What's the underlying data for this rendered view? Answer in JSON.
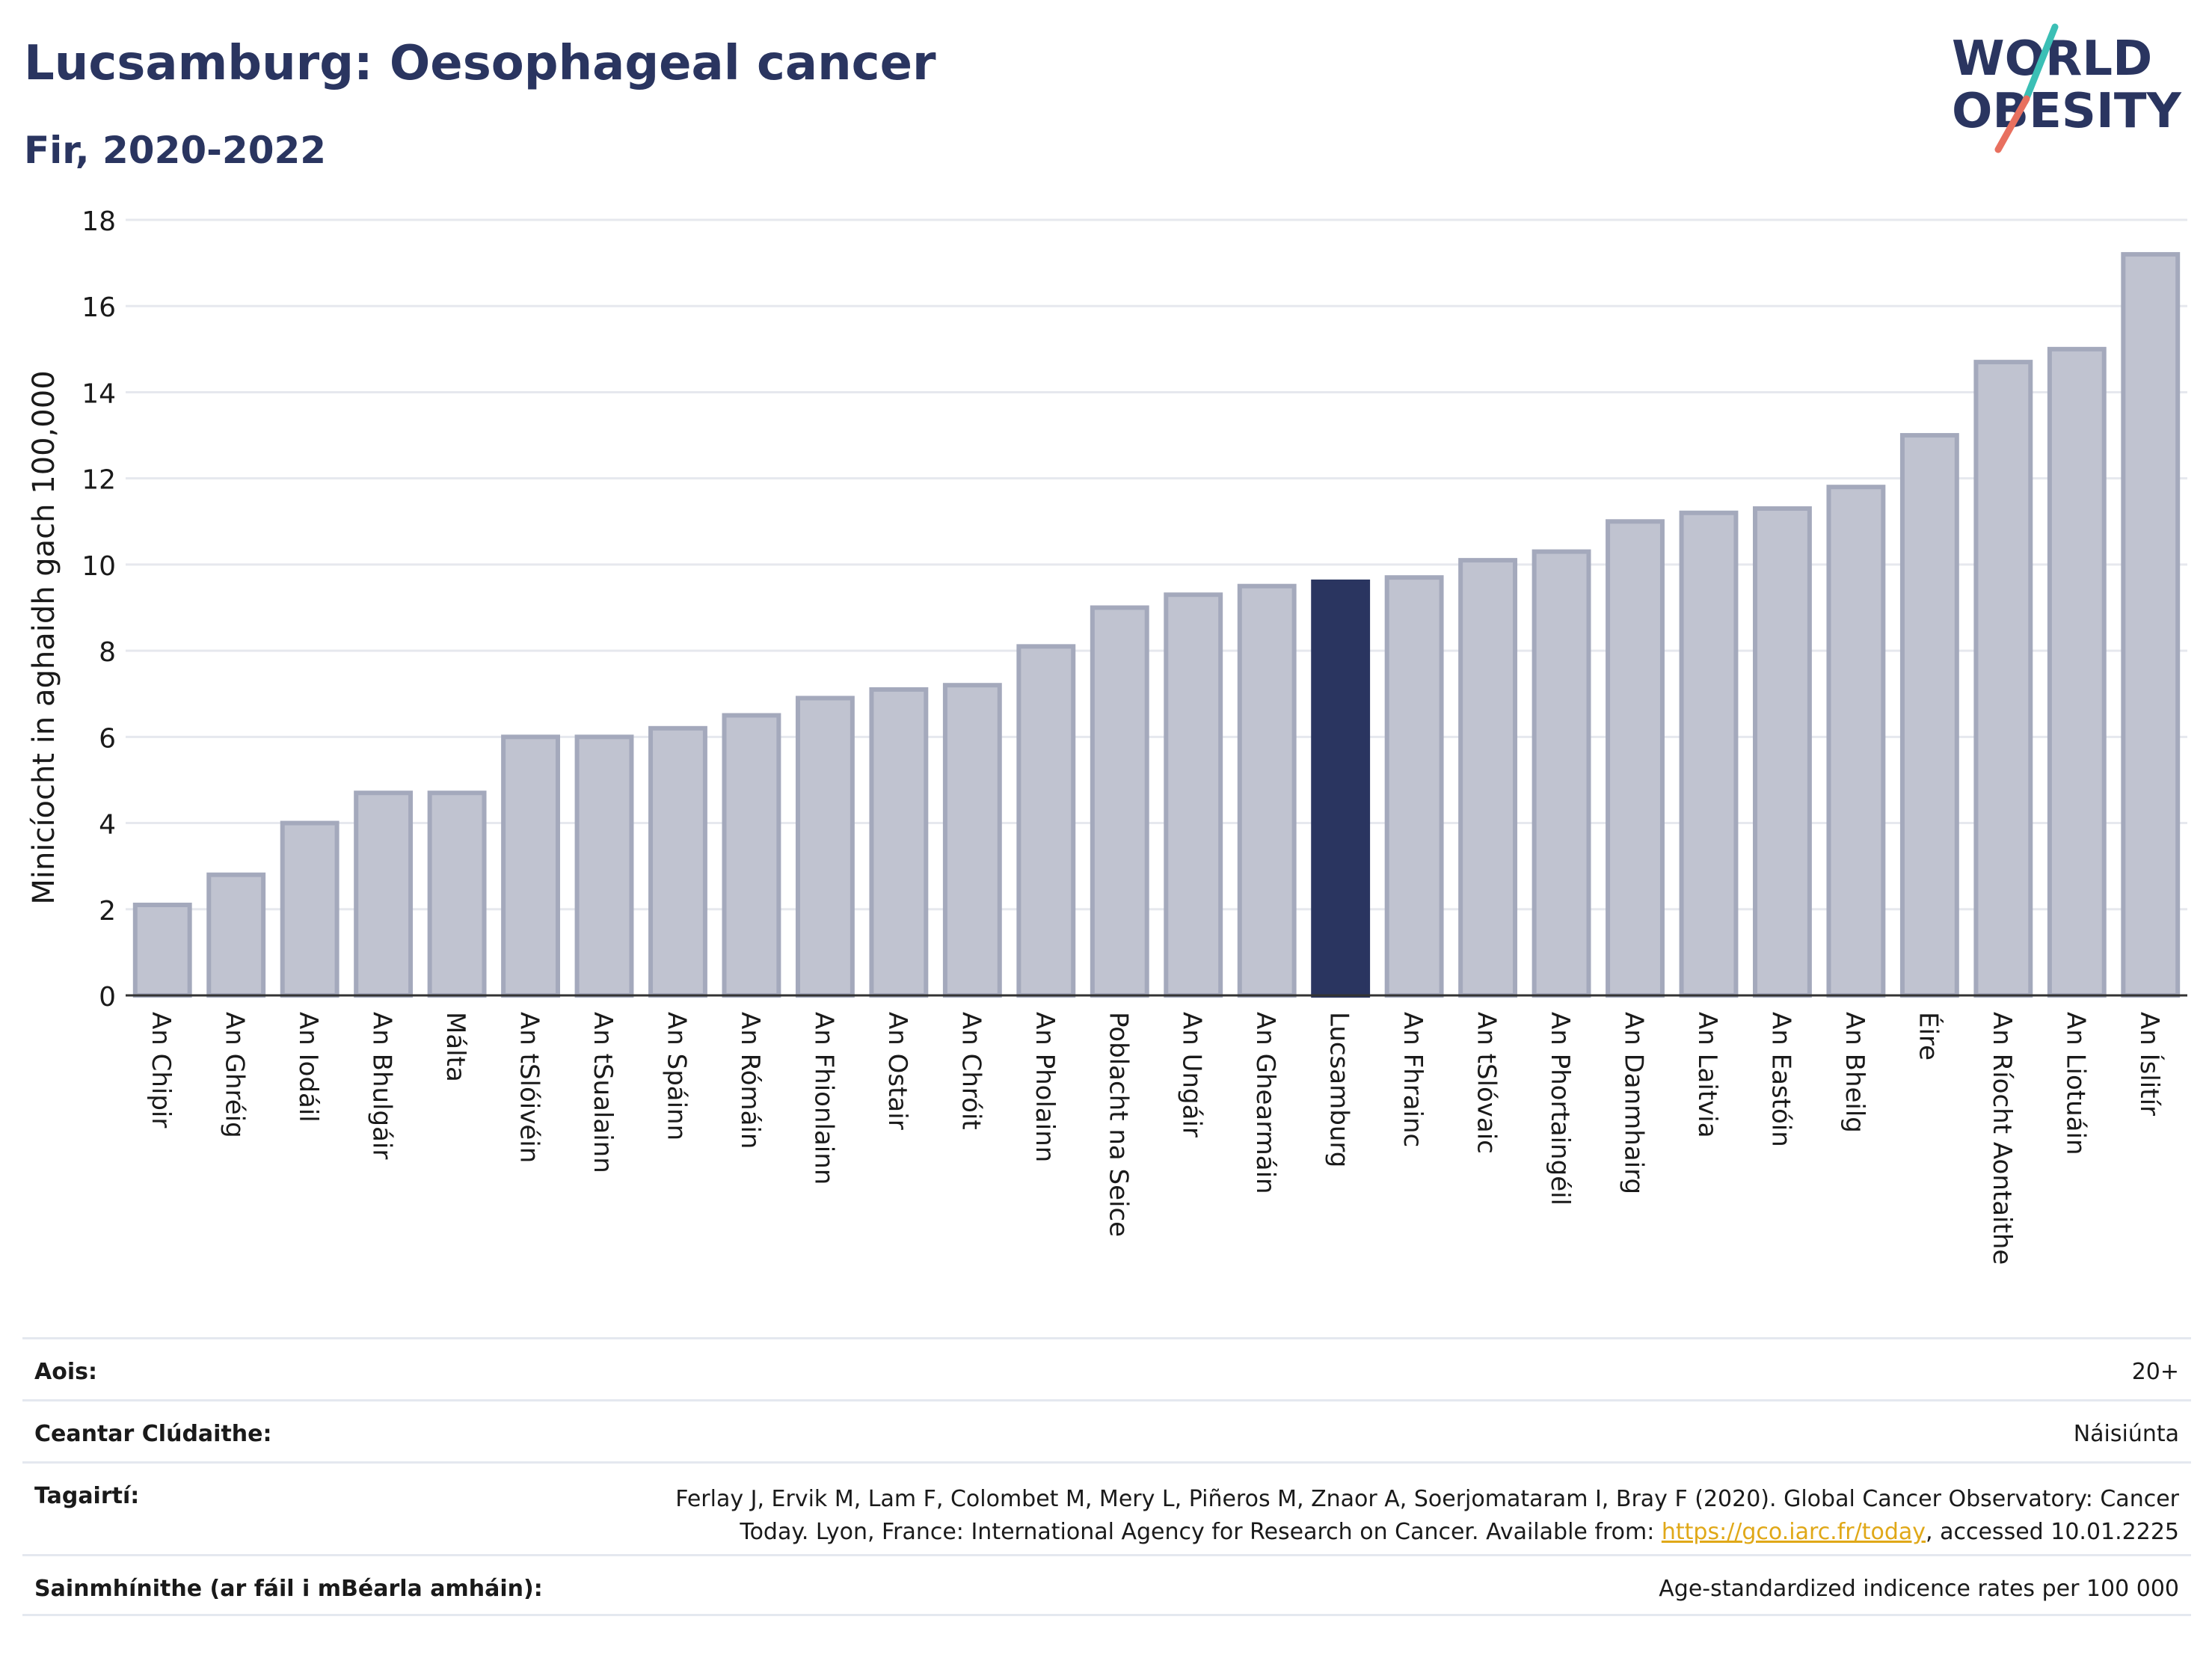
{
  "title": "Lucsamburg: Oesophageal cancer",
  "subtitle": "Fir, 2020-2022",
  "logo": {
    "line1": "WORLD",
    "line2": "OBESITY",
    "colors": {
      "text": "#2a3560",
      "slash_top": "#3bbfb5",
      "slash_bottom": "#e8705f"
    }
  },
  "colors": {
    "bar": "#c0c3d0",
    "bar_border": "#a4a9bc",
    "highlight": "#2a3560",
    "grid": "#e6e8ee",
    "axis": "#333333"
  },
  "chart_data": {
    "type": "bar",
    "ylabel": "Minicíocht in aghaidh gach 100,000",
    "xlabel": "",
    "ylim": [
      0,
      18
    ],
    "yticks": [
      0,
      2,
      4,
      6,
      8,
      10,
      12,
      14,
      16,
      18
    ],
    "grid": true,
    "highlight": "Lucsamburg",
    "categories": [
      "An Chipir",
      "An Ghréig",
      "An Iodáil",
      "An Bhulgáir",
      "Málta",
      "An tSlóivéin",
      "An tSualainn",
      "An Spáinn",
      "An Rómáin",
      "An Fhionlainn",
      "An Ostair",
      "An Chróit",
      "An Pholainn",
      "Poblacht na Seice",
      "An Ungáir",
      "An Ghearmáin",
      "Lucsamburg",
      "An Fhrainc",
      "An tSlóvaic",
      "An Phortaingéil",
      "An Danmhairg",
      "An Laitvia",
      "An Eastóin",
      "An Bheilg",
      "Éire",
      "An Ríocht Aontaithe",
      "An Liotuáin",
      "An Íslitír"
    ],
    "values": [
      2.1,
      2.8,
      4.0,
      4.7,
      4.7,
      6.0,
      6.0,
      6.2,
      6.5,
      6.9,
      7.1,
      7.2,
      8.1,
      9.0,
      9.3,
      9.5,
      9.6,
      9.7,
      10.1,
      10.3,
      11.0,
      11.2,
      11.3,
      11.8,
      13.0,
      14.7,
      15.0,
      17.2
    ]
  },
  "info": {
    "age_label": "Aois:",
    "age_value": "20+",
    "area_label": "Ceantar Clúdaithe:",
    "area_value": "Náisiúnta",
    "ref_label": "Tagairtí:",
    "ref_line1": "Ferlay J, Ervik M, Lam F, Colombet M, Mery L, Piñeros M, Znaor A, Soerjomataram I, Bray F (2020). Global Cancer Observatory: Cancer",
    "ref_line2_pre": "Today. Lyon, France: International Agency for Research on Cancer. Available from: ",
    "ref_link": "https://gco.iarc.fr/today",
    "ref_line2_post": ", accessed 10.01.2225",
    "def_label": "Sainmhínithe (ar fáil i mBéarla amháin):",
    "def_value": "Age-standardized indicence rates per 100 000"
  }
}
